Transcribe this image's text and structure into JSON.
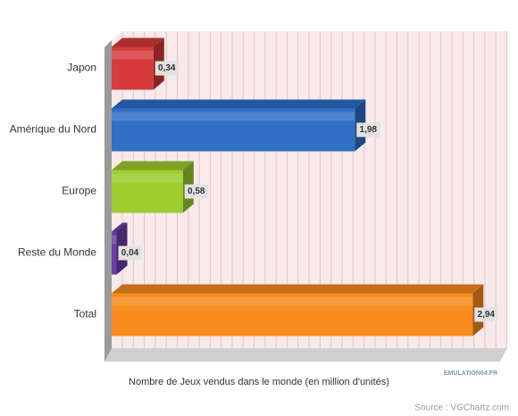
{
  "chart_data": {
    "type": "bar",
    "orientation": "horizontal",
    "x_label": "Nombre de Jeux vendus dans le monde (en million d'unités)",
    "source": "Source : VGChartz.com",
    "watermark": "EMULATION64.FR",
    "categories": [
      "Japon",
      "Amérique du Nord",
      "Europe",
      "Reste du Monde",
      "Total"
    ],
    "values": [
      0.34,
      1.98,
      0.58,
      0.04,
      2.94
    ],
    "value_labels": [
      "0,34",
      "1,98",
      "0,58",
      "0,04",
      "2,94"
    ],
    "colors": [
      "#d63a3a",
      "#2f6fc6",
      "#9ccc2e",
      "#6c3ea6",
      "#f78b1e"
    ],
    "xlim": [
      0,
      3.2
    ],
    "grid": true
  }
}
